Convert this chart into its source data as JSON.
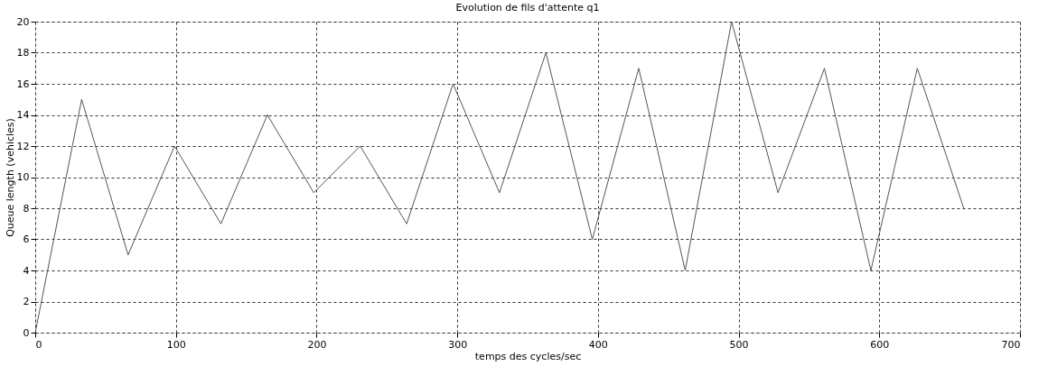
{
  "chart_data": {
    "type": "line",
    "title": "Evolution de fils d'attente q1",
    "xlabel": "temps des cycles/sec",
    "ylabel": "Queue length (vehicles)",
    "x": [
      0,
      33,
      66,
      99,
      132,
      165,
      198,
      231,
      264,
      297,
      330,
      363,
      396,
      429,
      462,
      495,
      528,
      561,
      594,
      627,
      660
    ],
    "series": [
      {
        "color": "#555555",
        "values": [
          0,
          15,
          5,
          12,
          7,
          14,
          9,
          12,
          7,
          16,
          9,
          18,
          6,
          17,
          4,
          20,
          9,
          17,
          4,
          17,
          8
        ]
      }
    ],
    "xlim": [
      0,
      700
    ],
    "xticks": [
      0,
      100,
      200,
      300,
      400,
      500,
      600,
      700
    ],
    "ylim": [
      0,
      20
    ],
    "yticks": [
      0,
      2,
      4,
      6,
      8,
      10,
      12,
      14,
      16,
      18,
      20
    ],
    "grid": true,
    "line_style": "solid",
    "marker": "none",
    "legend": false
  }
}
